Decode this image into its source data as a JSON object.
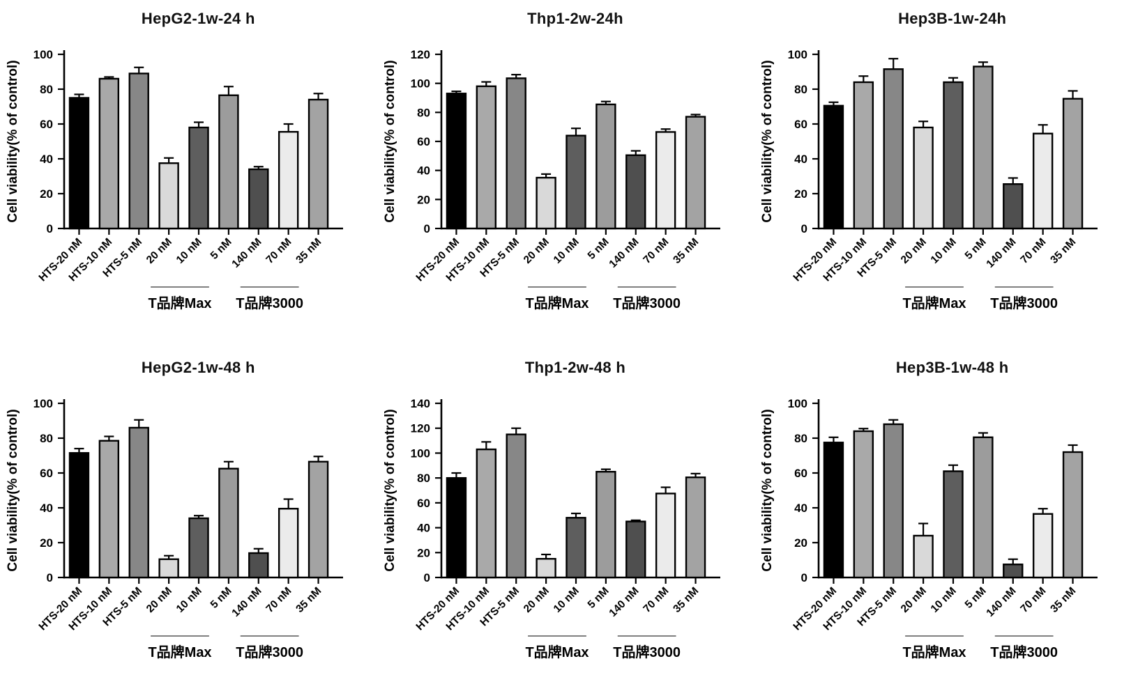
{
  "figure": {
    "background": "#ffffff",
    "axis_color": "#000000",
    "text_color": "#000000",
    "bar_colors": [
      "#000000",
      "#a9a9a9",
      "#878787",
      "#d9d9d9",
      "#5e5e5e",
      "#9c9c9c",
      "#4f4f4f",
      "#ebebeb",
      "#a3a3a3"
    ]
  },
  "chart_data": [
    {
      "type": "bar",
      "title": "HepG2-1w-24 h",
      "ylabel": "Cell viability(% of control)",
      "xlabel": "",
      "ylim": [
        0,
        100
      ],
      "ytick_step": 20,
      "grid": false,
      "legend": false,
      "categories": [
        "HTS-20 nM",
        "HTS-10 nM",
        "HTS-5 nM",
        "20 nM",
        "10 nM",
        "5 nM",
        "140 nM",
        "70 nM",
        "35 nM"
      ],
      "values": [
        75,
        86,
        89,
        37.5,
        58,
        76.5,
        34,
        55.5,
        74
      ],
      "errors": [
        2,
        1,
        3.5,
        3,
        3,
        5,
        1.5,
        4.5,
        3.5
      ],
      "groups": [
        {
          "label": "T品牌Max",
          "from": 3,
          "to": 5
        },
        {
          "label": "T品牌3000",
          "from": 6,
          "to": 8
        }
      ]
    },
    {
      "type": "bar",
      "title": "Thp1-2w-24h",
      "ylabel": "Cell viability(% of control)",
      "xlabel": "",
      "ylim": [
        0,
        120
      ],
      "ytick_step": 20,
      "grid": false,
      "legend": false,
      "categories": [
        "HTS-20 nM",
        "HTS-10 nM",
        "HTS-5 nM",
        "20 nM",
        "10 nM",
        "5 nM",
        "140 nM",
        "70 nM",
        "35 nM"
      ],
      "values": [
        93,
        98,
        103.5,
        35,
        64,
        85.5,
        50.5,
        66.5,
        77
      ],
      "errors": [
        1.5,
        3,
        2.5,
        2.5,
        5,
        2,
        3,
        2,
        1.5
      ],
      "groups": [
        {
          "label": "T品牌Max",
          "from": 3,
          "to": 5
        },
        {
          "label": "T品牌3000",
          "from": 6,
          "to": 8
        }
      ]
    },
    {
      "type": "bar",
      "title": "Hep3B-1w-24h",
      "ylabel": "Cell viability(% of control)",
      "xlabel": "",
      "ylim": [
        0,
        100
      ],
      "ytick_step": 20,
      "grid": false,
      "legend": false,
      "categories": [
        "HTS-20 nM",
        "HTS-10 nM",
        "HTS-5 nM",
        "20 nM",
        "10 nM",
        "5 nM",
        "140 nM",
        "70 nM",
        "35 nM"
      ],
      "values": [
        70.5,
        84,
        91.5,
        58,
        84,
        93,
        25.5,
        54.5,
        74.5
      ],
      "errors": [
        2,
        3.5,
        6,
        3.5,
        2.5,
        2.5,
        3.5,
        5,
        4.5
      ],
      "groups": [
        {
          "label": "T品牌Max",
          "from": 3,
          "to": 5
        },
        {
          "label": "T品牌3000",
          "from": 6,
          "to": 8
        }
      ]
    },
    {
      "type": "bar",
      "title": "HepG2-1w-48 h",
      "ylabel": "Cell viability(% of control)",
      "xlabel": "",
      "ylim": [
        0,
        100
      ],
      "ytick_step": 20,
      "grid": false,
      "legend": false,
      "categories": [
        "HTS-20 nM",
        "HTS-10 nM",
        "HTS-5 nM",
        "20 nM",
        "10 nM",
        "5 nM",
        "140 nM",
        "70 nM",
        "35 nM"
      ],
      "values": [
        71.5,
        78.5,
        86,
        10.5,
        34,
        62.5,
        14,
        39.5,
        66.5
      ],
      "errors": [
        2.5,
        2.5,
        4.5,
        2,
        1.5,
        4,
        2.5,
        5.5,
        3
      ],
      "groups": [
        {
          "label": "T品牌Max",
          "from": 3,
          "to": 5
        },
        {
          "label": "T品牌3000",
          "from": 6,
          "to": 8
        }
      ]
    },
    {
      "type": "bar",
      "title": "Thp1-2w-48 h",
      "ylabel": "Cell viability(% of control)",
      "xlabel": "",
      "ylim": [
        0,
        140
      ],
      "ytick_step": 20,
      "grid": false,
      "legend": false,
      "categories": [
        "HTS-20 nM",
        "HTS-10 nM",
        "HTS-5 nM",
        "20 nM",
        "10 nM",
        "5 nM",
        "140 nM",
        "70 nM",
        "35 nM"
      ],
      "values": [
        80,
        103,
        115,
        15,
        48,
        85,
        45,
        67.5,
        80.5
      ],
      "errors": [
        4,
        6,
        5,
        3.5,
        3.5,
        2,
        1,
        5,
        3
      ],
      "groups": [
        {
          "label": "T品牌Max",
          "from": 3,
          "to": 5
        },
        {
          "label": "T品牌3000",
          "from": 6,
          "to": 8
        }
      ]
    },
    {
      "type": "bar",
      "title": "Hep3B-1w-48 h",
      "ylabel": "Cell viability(% of control)",
      "xlabel": "",
      "ylim": [
        0,
        100
      ],
      "ytick_step": 20,
      "grid": false,
      "legend": false,
      "categories": [
        "HTS-20 nM",
        "HTS-10 nM",
        "HTS-5 nM",
        "20 nM",
        "10 nM",
        "5 nM",
        "140 nM",
        "70 nM",
        "35 nM"
      ],
      "values": [
        77.5,
        84,
        88,
        24,
        61,
        80.5,
        7.5,
        36.5,
        72
      ],
      "errors": [
        3,
        1.5,
        2.5,
        7,
        3.5,
        2.5,
        3,
        3,
        4
      ],
      "groups": [
        {
          "label": "T品牌Max",
          "from": 3,
          "to": 5
        },
        {
          "label": "T品牌3000",
          "from": 6,
          "to": 8
        }
      ]
    }
  ]
}
